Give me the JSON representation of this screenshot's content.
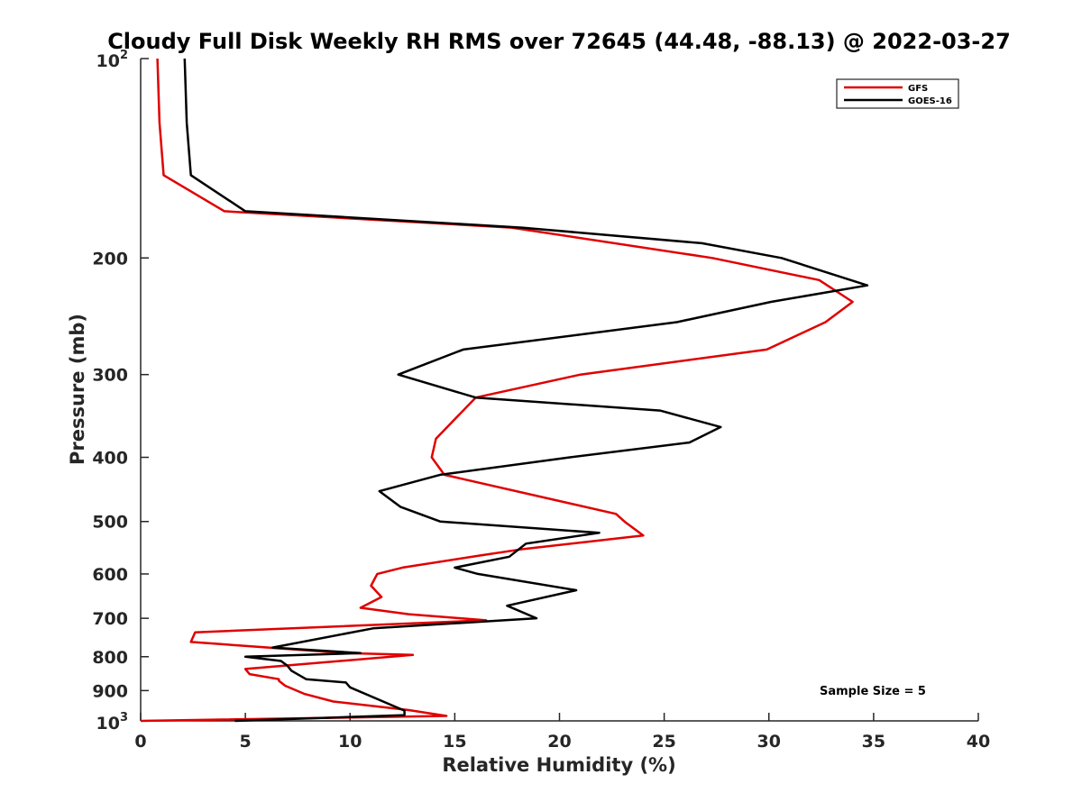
{
  "chart_data": {
    "type": "line",
    "title": "Cloudy Full Disk Weekly RH RMS over 72645 (44.48, -88.13) @ 2022-03-27",
    "xlabel": "Relative Humidity (%)",
    "ylabel": "Pressure (mb)",
    "xlim": [
      0,
      40
    ],
    "ylim": [
      100,
      1000
    ],
    "y_scale": "log",
    "y_reversed": true,
    "x_ticks": [
      0,
      5,
      10,
      15,
      20,
      25,
      30,
      35,
      40
    ],
    "y_ticks": [
      {
        "value": 100,
        "base": "10",
        "exp": "2"
      },
      {
        "value": 200,
        "label": "200"
      },
      {
        "value": 300,
        "label": "300"
      },
      {
        "value": 400,
        "label": "400"
      },
      {
        "value": 500,
        "label": "500"
      },
      {
        "value": 600,
        "label": "600"
      },
      {
        "value": 700,
        "label": "700"
      },
      {
        "value": 800,
        "label": "800"
      },
      {
        "value": 900,
        "label": "900"
      },
      {
        "value": 1000,
        "base": "10",
        "exp": "3"
      }
    ],
    "grid": false,
    "legend_position": "top-right",
    "annotation": "Sample Size = 5",
    "series": [
      {
        "name": "GFS",
        "color": "#e00000",
        "points": [
          [
            0.8,
            100
          ],
          [
            0.9,
            125
          ],
          [
            1.1,
            150
          ],
          [
            4.0,
            170
          ],
          [
            17.7,
            180
          ],
          [
            27.3,
            200
          ],
          [
            32.4,
            216
          ],
          [
            34.0,
            233
          ],
          [
            32.7,
            250
          ],
          [
            29.9,
            275
          ],
          [
            21.0,
            300
          ],
          [
            16.0,
            325
          ],
          [
            14.1,
            375
          ],
          [
            13.9,
            400
          ],
          [
            14.5,
            425
          ],
          [
            22.7,
            487
          ],
          [
            23.1,
            500
          ],
          [
            24.0,
            525
          ],
          [
            18.3,
            550
          ],
          [
            16.3,
            562
          ],
          [
            12.5,
            587
          ],
          [
            11.3,
            600
          ],
          [
            11.0,
            625
          ],
          [
            11.5,
            650
          ],
          [
            10.5,
            675
          ],
          [
            12.8,
            690
          ],
          [
            16.5,
            705
          ],
          [
            2.6,
            735
          ],
          [
            2.4,
            760
          ],
          [
            9.8,
            790
          ],
          [
            13.0,
            795
          ],
          [
            5.0,
            835
          ],
          [
            5.2,
            850
          ],
          [
            6.6,
            865
          ],
          [
            6.6,
            870
          ],
          [
            6.9,
            885
          ],
          [
            7.8,
            910
          ],
          [
            9.2,
            935
          ],
          [
            12.8,
            963
          ],
          [
            14.6,
            983
          ],
          [
            0.0,
            1000
          ]
        ]
      },
      {
        "name": "GOES-16",
        "color": "#000000",
        "points": [
          [
            2.1,
            100
          ],
          [
            2.2,
            125
          ],
          [
            2.4,
            150
          ],
          [
            5.0,
            170
          ],
          [
            18.2,
            180
          ],
          [
            26.8,
            190
          ],
          [
            30.6,
            200
          ],
          [
            34.7,
            220
          ],
          [
            30.1,
            233
          ],
          [
            25.6,
            250
          ],
          [
            15.4,
            275
          ],
          [
            12.3,
            300
          ],
          [
            16.0,
            325
          ],
          [
            24.8,
            340
          ],
          [
            27.7,
            360
          ],
          [
            26.2,
            380
          ],
          [
            20.5,
            400
          ],
          [
            14.3,
            425
          ],
          [
            11.4,
            450
          ],
          [
            12.4,
            475
          ],
          [
            14.3,
            500
          ],
          [
            21.9,
            520
          ],
          [
            18.4,
            540
          ],
          [
            17.6,
            565
          ],
          [
            15.0,
            587
          ],
          [
            16.1,
            600
          ],
          [
            20.8,
            635
          ],
          [
            17.5,
            670
          ],
          [
            18.9,
            700
          ],
          [
            11.1,
            725
          ],
          [
            6.3,
            775
          ],
          [
            10.5,
            790
          ],
          [
            5.0,
            800
          ],
          [
            6.7,
            812
          ],
          [
            7.0,
            825
          ],
          [
            7.2,
            840
          ],
          [
            7.9,
            865
          ],
          [
            9.8,
            875
          ],
          [
            10.0,
            890
          ],
          [
            12.6,
            965
          ],
          [
            12.6,
            980
          ],
          [
            4.5,
            1000
          ]
        ]
      }
    ]
  }
}
